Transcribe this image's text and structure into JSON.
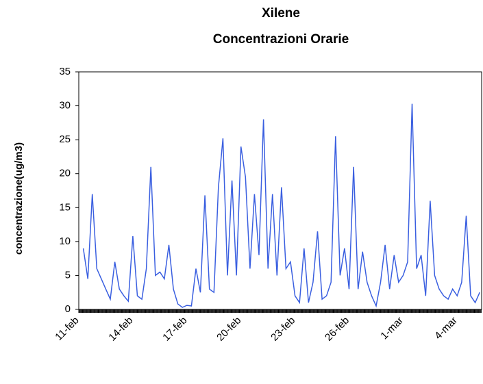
{
  "chart_data": {
    "type": "line",
    "title": "Xilene",
    "subtitle": "Concentrazioni Orarie",
    "y_label": "concentrazione(ug/m3)",
    "categories": [
      "11-feb",
      null,
      null,
      null,
      null,
      null,
      null,
      null,
      null,
      null,
      null,
      null,
      "14-feb",
      null,
      null,
      null,
      null,
      null,
      null,
      null,
      null,
      null,
      null,
      null,
      "17-feb",
      null,
      null,
      null,
      null,
      null,
      null,
      null,
      null,
      null,
      null,
      null,
      "20-feb",
      null,
      null,
      null,
      null,
      null,
      null,
      null,
      null,
      null,
      null,
      null,
      "23-feb",
      null,
      null,
      null,
      null,
      null,
      null,
      null,
      null,
      null,
      null,
      null,
      "26-feb",
      null,
      null,
      null,
      null,
      null,
      null,
      null,
      null,
      null,
      null,
      null,
      "1-mar",
      null,
      null,
      null,
      null,
      null,
      null,
      null,
      null,
      null,
      null,
      null,
      "4-mar",
      null,
      null,
      null,
      null,
      null
    ],
    "series": [
      {
        "name": "Xilene",
        "color": "#3a5fe0",
        "values": [
          null,
          9,
          4.5,
          17,
          6,
          4.5,
          3,
          1.5,
          7,
          3,
          2,
          1.2,
          10.8,
          2,
          1.5,
          6,
          21,
          5,
          5.5,
          4.5,
          9.5,
          3,
          0.8,
          0.3,
          0.6,
          0.5,
          6,
          2.5,
          16.8,
          3,
          2.5,
          18,
          25.2,
          5,
          19,
          5,
          24,
          19.5,
          6,
          17,
          8,
          28,
          6,
          17,
          5,
          18,
          6,
          7,
          2,
          1,
          9,
          1,
          4,
          11.5,
          1.5,
          2,
          4,
          25.5,
          5,
          9,
          3,
          21,
          3,
          8.5,
          4,
          2,
          0.5,
          4,
          9.5,
          3,
          8,
          4,
          5,
          7,
          30.3,
          6,
          8,
          2,
          16,
          5,
          3,
          2,
          1.5,
          3,
          2,
          4,
          13.8,
          2,
          1,
          2.5
        ]
      }
    ],
    "ylim": [
      0,
      35
    ],
    "yticks": [
      0,
      5,
      10,
      15,
      20,
      25,
      30,
      35
    ],
    "grid": false
  }
}
